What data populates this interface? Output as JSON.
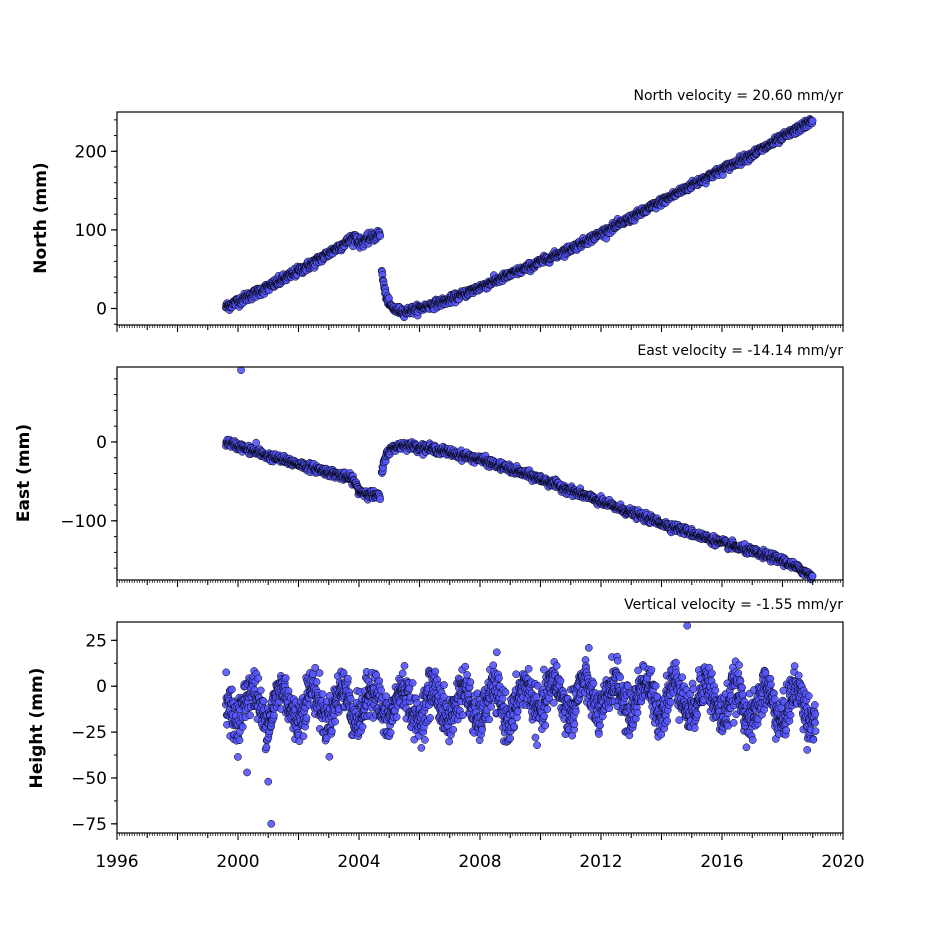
{
  "chart_data": [
    {
      "type": "scatter",
      "title": "North velocity = 20.60 mm/yr",
      "ylabel": "North (mm)",
      "xlim": [
        1996,
        2020
      ],
      "ylim": [
        -21,
        250
      ],
      "yticks": [
        0,
        100,
        200
      ],
      "ytick_labels": [
        "0",
        "100",
        "200"
      ],
      "x_tick_labels_shown": false,
      "marker_color": "#5555ff",
      "segments": [
        {
          "x": [
            1999.6,
            2001.0,
            2002.5,
            2003.9,
            2004.0,
            2004.7
          ],
          "y": [
            2,
            27,
            58,
            92,
            83,
            95
          ],
          "noise": 3
        },
        {
          "x": [
            2004.75,
            2004.85,
            2005.0,
            2005.2,
            2005.5,
            2006.0,
            2007.0,
            2008.0,
            2009.5,
            2011.0,
            2013.0,
            2015.0,
            2017.0,
            2019.0
          ],
          "y": [
            48,
            22,
            5,
            -2,
            -4,
            0,
            11,
            27,
            51,
            76,
            115,
            157,
            196,
            239
          ],
          "noise": 2.5
        }
      ]
    },
    {
      "type": "scatter",
      "title": "East velocity = -14.14 mm/yr",
      "ylabel": "East (mm)",
      "xlim": [
        1996,
        2020
      ],
      "ylim": [
        -175,
        95
      ],
      "yticks": [
        -100,
        0
      ],
      "ytick_labels": [
        "−100",
        "0"
      ],
      "x_tick_labels_shown": false,
      "marker_color": "#5555ff",
      "segments": [
        {
          "x": [
            1999.6,
            2001.0,
            2002.5,
            2003.8,
            2004.0,
            2004.7
          ],
          "y": [
            0,
            -18,
            -33,
            -47,
            -62,
            -70
          ],
          "noise": 2.5
        },
        {
          "x": [
            2004.75,
            2004.9,
            2005.2,
            2005.5,
            2006.5,
            2008.0,
            2010.0,
            2012.0,
            2014.0,
            2016.0,
            2018.0,
            2019.0
          ],
          "y": [
            -40,
            -15,
            -6,
            -4,
            -9,
            -22,
            -47,
            -76,
            -103,
            -128,
            -150,
            -170
          ],
          "noise": 2.5
        }
      ],
      "outliers": [
        {
          "x": 2000.1,
          "y": 91
        },
        {
          "x": 2000.6,
          "y": -1
        }
      ]
    },
    {
      "type": "scatter",
      "title": "Vertical velocity = -1.55 mm/yr",
      "ylabel": "Height (mm)",
      "xlabel": "",
      "xlim": [
        1996,
        2020
      ],
      "ylim": [
        -80,
        35
      ],
      "yticks": [
        -75,
        -50,
        -25,
        0,
        25
      ],
      "ytick_labels": [
        "−75",
        "−50",
        "−25",
        "0",
        "25"
      ],
      "xticks": [
        1996,
        2000,
        2004,
        2008,
        2012,
        2016,
        2020
      ],
      "xtick_labels": [
        "1996",
        "2000",
        "2004",
        "2008",
        "2012",
        "2016",
        "2020"
      ],
      "marker_color": "#5555ff",
      "range_x": [
        1999.6,
        2019.1
      ],
      "mean": -10,
      "seasonal_amplitude": 9,
      "noise": 6,
      "outliers": [
        {
          "x": 2001.1,
          "y": -75
        },
        {
          "x": 2014.85,
          "y": 33
        },
        {
          "x": 2000.3,
          "y": -47
        },
        {
          "x": 2001.0,
          "y": -52
        }
      ]
    }
  ]
}
